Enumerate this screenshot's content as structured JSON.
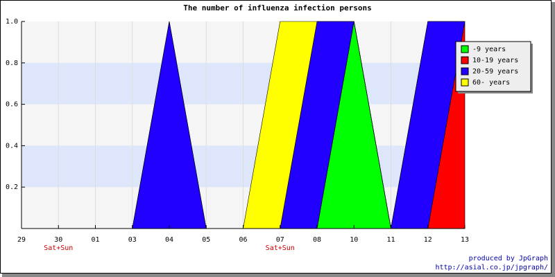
{
  "chart_data": {
    "type": "stacked_area",
    "title": "The number of influenza infection persons",
    "categories": [
      "29",
      "30",
      "01",
      "03",
      "04",
      "05",
      "06",
      "07",
      "08",
      "10",
      "11",
      "12",
      "13"
    ],
    "series": [
      {
        "name": "-9 years",
        "color": "#00ff00",
        "values": [
          0,
          0,
          0,
          0,
          0,
          0,
          0,
          0,
          0,
          1,
          0,
          0,
          0
        ]
      },
      {
        "name": "10-19 years",
        "color": "#ff0000",
        "values": [
          0,
          0,
          0,
          0,
          0,
          0,
          0,
          0,
          0,
          0,
          0,
          0,
          1
        ]
      },
      {
        "name": "20-59 years",
        "color": "#2200ff",
        "values": [
          0,
          0,
          0,
          0,
          1,
          0,
          0,
          0,
          1,
          0,
          0,
          1,
          0
        ]
      },
      {
        "name": "60- years",
        "color": "#ffff00",
        "values": [
          0,
          0,
          0,
          0,
          0,
          0,
          0,
          1,
          0,
          0,
          0,
          0,
          0
        ]
      }
    ],
    "ylim": [
      0,
      1
    ],
    "yticks": [
      0.2,
      0.4,
      0.6,
      0.8,
      {
        "value": 1,
        "label": "1.0"
      }
    ],
    "grid": true,
    "legend_position": "top-right",
    "annotations": [
      {
        "category": "30",
        "text": "Sat+Sun"
      },
      {
        "category": "07",
        "text": "Sat+Sun"
      }
    ],
    "footer": [
      "produced by JpGraph",
      "http://asial.co.jp/jpgraph/"
    ]
  }
}
